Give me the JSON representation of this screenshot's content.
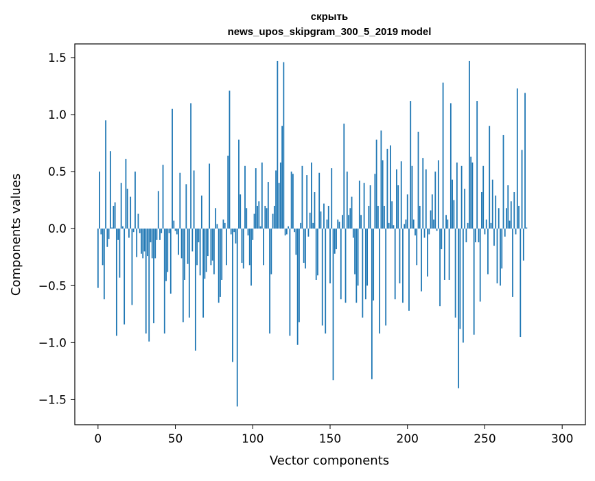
{
  "chart_data": {
    "type": "bar",
    "title": "скрыть",
    "subtitle": "news_upos_skipgram_300_5_2019 model",
    "xlabel": "Vector components",
    "ylabel": "Components values",
    "xlim": [
      -15,
      315
    ],
    "ylim": [
      -1.72,
      1.62
    ],
    "xticks": [
      0,
      50,
      100,
      150,
      200,
      250,
      300
    ],
    "yticks": [
      -1.5,
      -1.0,
      -0.5,
      0.0,
      0.5,
      1.0,
      1.5
    ],
    "xtick_labels": [
      "0",
      "50",
      "100",
      "150",
      "200",
      "250",
      "300"
    ],
    "ytick_labels": [
      "−1.5",
      "−1.0",
      "−0.5",
      "0.0",
      "0.5",
      "1.0",
      "1.5"
    ],
    "bar_color": "#1f77b4",
    "grid": false,
    "values": [
      -0.52,
      0.5,
      -0.05,
      -0.32,
      -0.62,
      0.95,
      -0.16,
      -0.09,
      0.68,
      0.01,
      0.2,
      0.23,
      -0.94,
      -0.1,
      -0.43,
      0.4,
      0.02,
      -0.84,
      0.61,
      0.35,
      -0.08,
      0.28,
      -0.67,
      -0.03,
      0.5,
      -0.25,
      0.13,
      -0.04,
      -0.22,
      -0.26,
      -0.2,
      -0.92,
      -0.24,
      -0.99,
      -0.12,
      -0.26,
      -0.83,
      -0.26,
      -0.1,
      0.33,
      -0.1,
      -0.04,
      0.56,
      -0.92,
      -0.46,
      -0.38,
      -0.04,
      -0.57,
      1.05,
      0.07,
      -0.02,
      -0.05,
      -0.23,
      0.49,
      -0.26,
      -0.82,
      -0.45,
      0.39,
      -0.31,
      -0.78,
      1.1,
      -0.2,
      0.51,
      -1.07,
      -0.32,
      -0.12,
      -0.41,
      0.29,
      -0.78,
      -0.44,
      -0.38,
      -0.24,
      0.57,
      -0.32,
      -0.28,
      -0.4,
      0.18,
      0.04,
      -0.65,
      -0.6,
      -0.45,
      0.08,
      0.05,
      -0.32,
      0.64,
      1.21,
      -0.05,
      -1.17,
      -0.03,
      -0.13,
      -1.56,
      0.78,
      0.3,
      -0.3,
      -0.35,
      0.55,
      0.18,
      -0.06,
      -0.32,
      -0.5,
      -0.1,
      0.13,
      0.53,
      0.2,
      0.24,
      0.02,
      0.58,
      -0.32,
      0.2,
      0.18,
      0.41,
      -0.92,
      -0.4,
      0.13,
      0.2,
      0.51,
      1.47,
      0.4,
      0.58,
      0.9,
      1.46,
      -0.06,
      -0.05,
      0.02,
      -0.94,
      0.5,
      0.48,
      -0.03,
      -0.23,
      -1.02,
      -0.82,
      0.05,
      0.55,
      -0.3,
      -0.35,
      0.47,
      -0.07,
      0.14,
      0.58,
      0.05,
      0.32,
      -0.45,
      -0.41,
      0.49,
      0.15,
      -0.85,
      0.22,
      -0.92,
      0.08,
      0.2,
      -0.48,
      0.53,
      -1.33,
      -0.22,
      -0.18,
      0.08,
      0.06,
      -0.62,
      0.12,
      0.92,
      -0.65,
      0.5,
      0.12,
      0.18,
      0.28,
      -0.08,
      -0.4,
      -0.65,
      -0.5,
      0.42,
      0.12,
      -0.78,
      0.4,
      -0.62,
      -0.5,
      0.2,
      0.38,
      -1.32,
      -0.63,
      0.48,
      0.78,
      0.2,
      -0.92,
      0.86,
      0.6,
      0.2,
      -0.85,
      0.7,
      0.05,
      0.73,
      0.24,
      0.03,
      -0.62,
      0.52,
      0.38,
      -0.48,
      0.59,
      -0.65,
      0.04,
      0.08,
      0.3,
      -0.72,
      1.12,
      0.55,
      0.08,
      -0.06,
      -0.32,
      0.85,
      0.2,
      -0.55,
      0.62,
      -0.08,
      0.52,
      -0.42,
      -0.05,
      0.16,
      0.3,
      0.08,
      0.5,
      -0.02,
      0.6,
      -0.68,
      -0.18,
      1.28,
      -0.45,
      0.12,
      0.08,
      -0.45,
      1.1,
      0.43,
      0.25,
      -0.78,
      0.58,
      -1.4,
      -0.88,
      0.55,
      -1.0,
      0.35,
      -0.12,
      0.05,
      1.47,
      0.63,
      0.58,
      -0.93,
      -0.12,
      1.12,
      -0.12,
      -0.64,
      0.32,
      0.55,
      -0.05,
      0.08,
      -0.4,
      0.9,
      0.05,
      0.43,
      -0.15,
      0.29,
      -0.48,
      0.18,
      -0.5,
      -0.35,
      0.82,
      -0.07,
      0.18,
      0.38,
      0.07,
      0.24,
      -0.6,
      0.32,
      -0.05,
      1.23,
      0.2,
      -0.95,
      0.69,
      -0.28,
      1.19,
      0.01
    ]
  }
}
